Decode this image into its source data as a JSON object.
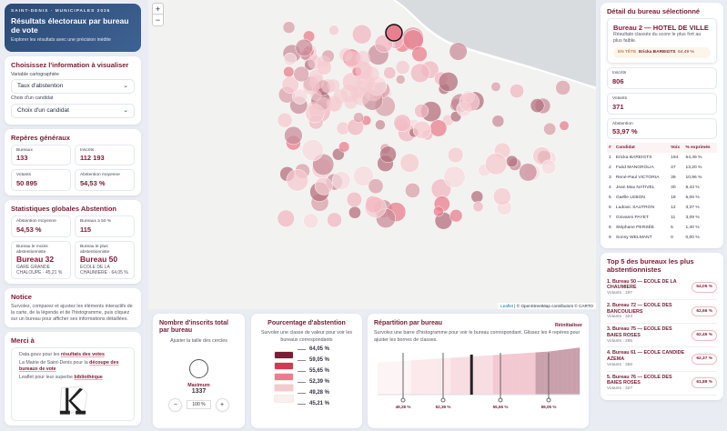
{
  "header": {
    "kicker": "SAINT-DENIS · MUNICIPALES 2026",
    "title": "Résultats électoraux par bureau de vote",
    "subtitle": "Explorer les résultats avec une précision inédite"
  },
  "choose": {
    "title": "Choisissez l'information à visualiser",
    "var_label": "Variable cartographiée",
    "var_value": "Taux d'abstention",
    "cand_label": "Choix d'un candidat",
    "cand_value": "Choix d'un candidat"
  },
  "reperes": {
    "title": "Repères généraux",
    "items": [
      {
        "label": "Bureaux",
        "value": "133"
      },
      {
        "label": "Inscrits",
        "value": "112 193"
      },
      {
        "label": "Votants",
        "value": "50 895"
      },
      {
        "label": "Abstention moyenne",
        "value": "54,53 %"
      }
    ]
  },
  "stats": {
    "title": "Statistiques globales Abstention",
    "avg_label": "Abstention moyenne",
    "avg": "54,53 %",
    "over_label": "Bureaux ≥ 50 %",
    "over": "115",
    "min_label": "Bureau le moins abstentionniste",
    "min_bureau": "Bureau 32",
    "min_sub": "GARE GRANDE CHALOUPE · 45,21 %",
    "max_label": "Bureau le plus abstentionniste",
    "max_bureau": "Bureau 50",
    "max_sub": "ECOLE DE LA CHAUMIERE · 64,05 %"
  },
  "notice": {
    "title": "Notice",
    "text": "Survolez, comparez et ajustez les éléments interactifs de la carte, de la légende et de l'histogramme, puis cliquez sur un bureau pour afficher ses informations détaillées."
  },
  "merci": {
    "title": "Merci à",
    "l1a": "Data.gouv pour les ",
    "l1b": "résultats des votes",
    "l2a": "La Mairie de Saint-Denis pour la ",
    "l2b": "découpe des bureaux de vote",
    "l3a": "Leaflet pour leur superbe ",
    "l3b": "bibliothèque",
    "logo": "LK carto"
  },
  "map": {
    "zoom_in": "+",
    "zoom_out": "−",
    "attribution_leaflet": "Leaflet",
    "attribution": " | © OpenStreetMap contributors © CARTO"
  },
  "size_panel": {
    "title": "Nombre d'inscrits total par bureau",
    "subtitle": "Ajuster la taille des cercles",
    "max_label": "Maximum",
    "max_value": "1337",
    "minus": "−",
    "zoom": "100 %",
    "plus": "+"
  },
  "legend": {
    "title": "Pourcentage d'abstention",
    "subtitle": "Survoler une classe de valeur pour voir les bureaux correspondants",
    "colors": [
      "#7a1f35",
      "#d03a52",
      "#e97f8e",
      "#f5c9d0",
      "#fbeeee"
    ],
    "breaks": [
      "64,05 %",
      "59,05 %",
      "55,65 %",
      "52,39 %",
      "49,28 %",
      "45,21 %"
    ]
  },
  "histogram": {
    "title": "Répartition par bureau",
    "reset": "Réinitialiser",
    "subtitle": "Survolez une barre d'histogramme pour voir le bureau correspondant. Glissez les 4 repères pour ajuster les bornes de classes.",
    "markers": [
      "49,28 %",
      "52,39 %",
      "55,65 %",
      "59,05 %"
    ],
    "min": 45.21,
    "max": 64.05,
    "selected": 53.97
  },
  "detail": {
    "title": "Détail du bureau sélectionné",
    "bureau": "Bureau 2 — HOTEL DE VILLE",
    "sub": "Résultats classés du score le plus fort au plus faible.",
    "lead_label": "EN TÊTE",
    "lead_name": "Ericka BAREIGTS",
    "lead_pct": "54,49 %",
    "inscrits_label": "Inscrits",
    "inscrits": "806",
    "votants_label": "Votants",
    "votants": "371",
    "abst_label": "Abstention",
    "abst": "53,97 %",
    "cols": [
      "#",
      "Candidat",
      "Voix",
      "% exprimés"
    ],
    "rows": [
      [
        "1",
        "Ericka BAREIGTS",
        "194",
        "54,49 %"
      ],
      [
        "2",
        "Farid MANGROLIA",
        "47",
        "13,20 %"
      ],
      [
        "3",
        "René-Paul VICTORIA",
        "39",
        "10,96 %"
      ],
      [
        "4",
        "Jean Max NATIVEL",
        "30",
        "8,43 %"
      ],
      [
        "5",
        "Gaëlle LEBON",
        "18",
        "5,06 %"
      ],
      [
        "6",
        "Ludovic SAUTRON",
        "12",
        "3,37 %"
      ],
      [
        "7",
        "Giovanni PAYET",
        "11",
        "3,09 %"
      ],
      [
        "8",
        "Stéphane PERSÉE",
        "5",
        "1,40 %"
      ],
      [
        "9",
        "Sonny WELMANT",
        "0",
        "0,00 %"
      ]
    ]
  },
  "top5": {
    "title": "Top 5 des bureaux les plus abstentionnistes",
    "items": [
      {
        "name": "1. Bureau 50 — ECOLE DE LA CHAUMIERE",
        "votants": "Votants : 197",
        "pct": "64,05 %"
      },
      {
        "name": "2. Bureau 72 — ECOLE DES BANCOULIERS",
        "votants": "Votants : 323",
        "pct": "62,66 %"
      },
      {
        "name": "3. Bureau 75 — ECOLE DES BAIES ROSES",
        "votants": "Votants : 285",
        "pct": "62,45 %"
      },
      {
        "name": "4. Bureau 61 — ECOLE CANDIDE AZEMA",
        "votants": "Votants : 356",
        "pct": "62,37 %"
      },
      {
        "name": "5. Bureau 76 — ECOLE DES BAIES ROSES",
        "votants": "Votants : 327",
        "pct": "61,89 %"
      }
    ]
  }
}
